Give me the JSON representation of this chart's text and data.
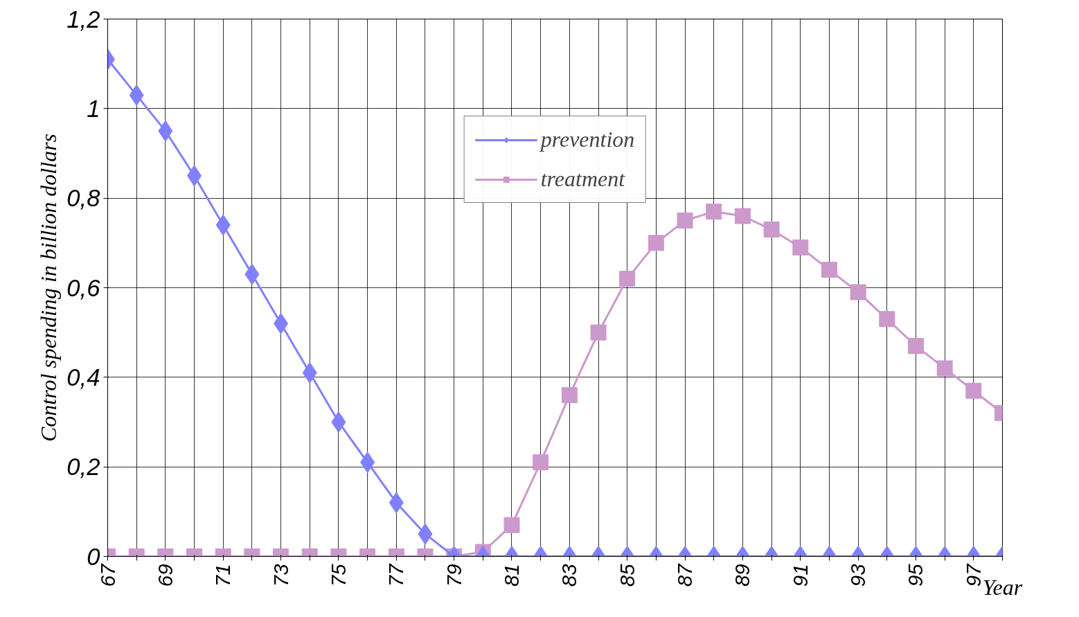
{
  "chart_data": {
    "type": "line",
    "xlabel": "Year",
    "ylabel": "Control spending in billion dollars",
    "x": [
      67,
      68,
      69,
      70,
      71,
      72,
      73,
      74,
      75,
      76,
      77,
      78,
      79,
      80,
      81,
      82,
      83,
      84,
      85,
      86,
      87,
      88,
      89,
      90,
      91,
      92,
      93,
      94,
      95,
      96,
      97,
      98
    ],
    "xlim": [
      67,
      98
    ],
    "ylim": [
      0,
      1.2
    ],
    "xticks": [
      67,
      {
        "value": 68,
        "label": null
      },
      69,
      {
        "value": 70,
        "label": null
      },
      71,
      {
        "value": 72,
        "label": null
      },
      73,
      {
        "value": 74,
        "label": null
      },
      75,
      {
        "value": 76,
        "label": null
      },
      77,
      {
        "value": 78,
        "label": null
      },
      79,
      {
        "value": 80,
        "label": null
      },
      81,
      {
        "value": 82,
        "label": null
      },
      83,
      {
        "value": 84,
        "label": null
      },
      85,
      {
        "value": 86,
        "label": null
      },
      87,
      {
        "value": 88,
        "label": null
      },
      89,
      {
        "value": 90,
        "label": null
      },
      91,
      {
        "value": 92,
        "label": null
      },
      93,
      {
        "value": 94,
        "label": null
      },
      95,
      {
        "value": 96,
        "label": null
      },
      97,
      {
        "value": 98,
        "label": null
      }
    ],
    "yticks": [
      0,
      {
        "value": 0.2,
        "label": "0,2"
      },
      {
        "value": 0.4,
        "label": "0,4"
      },
      {
        "value": 0.6,
        "label": "0,6"
      },
      {
        "value": 0.8,
        "label": "0,8"
      },
      1,
      {
        "value": 1.2,
        "label": "1,2"
      }
    ],
    "grid": true,
    "legend": "top",
    "series": [
      {
        "name": "prevention",
        "color": "#8080ff",
        "marker": "diamond",
        "values": [
          1.11,
          1.03,
          0.95,
          0.85,
          0.74,
          0.63,
          0.52,
          0.41,
          0.3,
          0.21,
          0.12,
          0.05,
          0,
          0,
          0,
          0,
          0,
          0,
          0,
          0,
          0,
          0,
          0,
          0,
          0,
          0,
          0,
          0,
          0,
          0,
          0,
          0
        ]
      },
      {
        "name": "treatment",
        "color": "#cc99cc",
        "marker": "square",
        "values": [
          0,
          0,
          0,
          0,
          0,
          0,
          0,
          0,
          0,
          0,
          0,
          0,
          0,
          0.01,
          0.07,
          0.21,
          0.36,
          0.5,
          0.62,
          0.7,
          0.75,
          0.77,
          0.76,
          0.73,
          0.69,
          0.64,
          0.59,
          0.53,
          0.47,
          0.42,
          0.37,
          0.32
        ]
      }
    ]
  }
}
